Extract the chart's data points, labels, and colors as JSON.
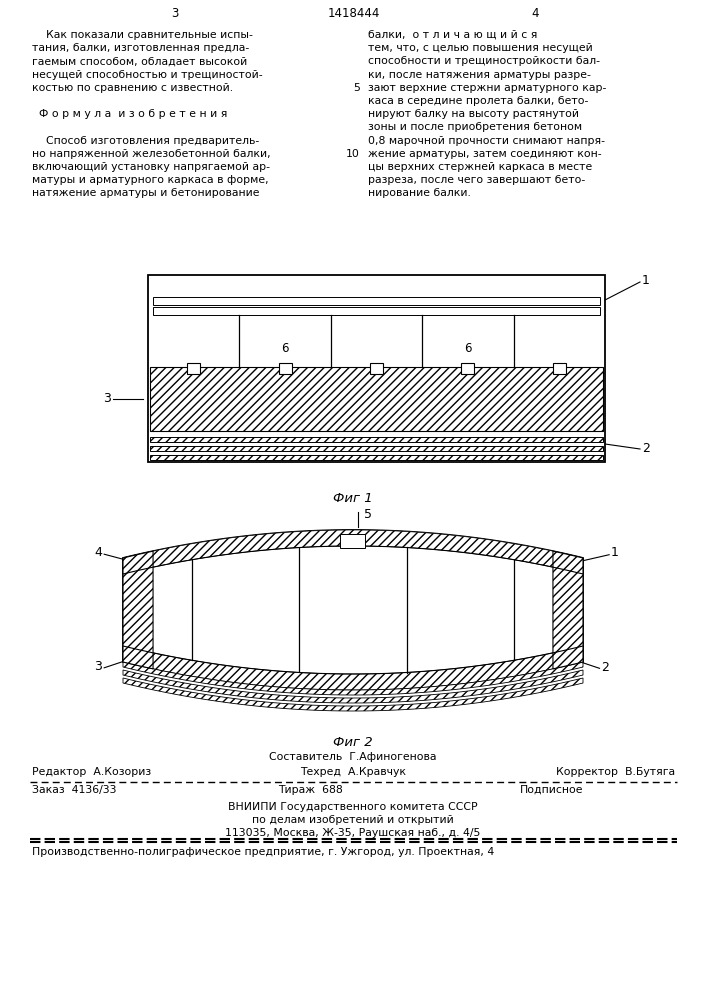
{
  "page_number_center": "1418444",
  "page_number_left": "3",
  "page_number_right": "4",
  "text_left_col": [
    "    Как показали сравнительные испы-",
    "тания, балки, изготовленная предла-",
    "гаемым способом, обладает высокой",
    "несущей способностью и трещиностой-",
    "костью по сравнению с известной.",
    "",
    "  Ф о р м у л а  и з о б р е т е н и я",
    "",
    "    Способ изготовления предваритель-",
    "но напряженной железобетонной балки,",
    "включающий установку напрягаемой ар-",
    "матуры и арматурного каркаса в форме,",
    "натяжение арматуры и бетонирование"
  ],
  "text_right_col": [
    "балки,  о т л и ч а ю щ и й с я",
    "тем, что, с целью повышения несущей",
    "способности и трещиностройкости бал-",
    "ки, после натяжения арматуры разре-",
    "зают верхние стержни арматурного кар-",
    "каса в середине пролета балки, бето-",
    "нируют балку на высоту растянутой",
    "зоны и после приобретения бетоном",
    "0,8 марочной прочности снимают напря-",
    "жение арматуры, затем соединяют кон-",
    "цы верхних стержней каркаса в месте",
    "разреза, после чего завершают бето-",
    "нирование балки."
  ],
  "fig1_caption": "Фиг 1",
  "fig2_caption": "Фиг 2",
  "label_1": "1",
  "label_2": "2",
  "label_3": "3",
  "label_4": "4",
  "label_5": "5",
  "label_6": "6",
  "footer_editor": "Редактор  А.Козориз",
  "footer_composer": "Составитель  Г.Афиногенова",
  "footer_corrector": "Корректор  В.Бутяга",
  "footer_techred": "Техред  А.Кравчук",
  "footer_order": "Заказ  4136/33",
  "footer_tirazh": "Тираж  688",
  "footer_podpisnoe": "Подписное",
  "footer_vniip1": "ВНИИПИ Государственного комитета СССР",
  "footer_vniip2": "по делам изобретений и открытий",
  "footer_vniip3": "113035, Москва, Ж-35, Раушская наб., д. 4/5",
  "footer_factory": "Производственно-полиграфическое предприятие, г. Ужгород, ул. Проектная, 4",
  "bg_color": "#ffffff",
  "text_color": "#000000"
}
